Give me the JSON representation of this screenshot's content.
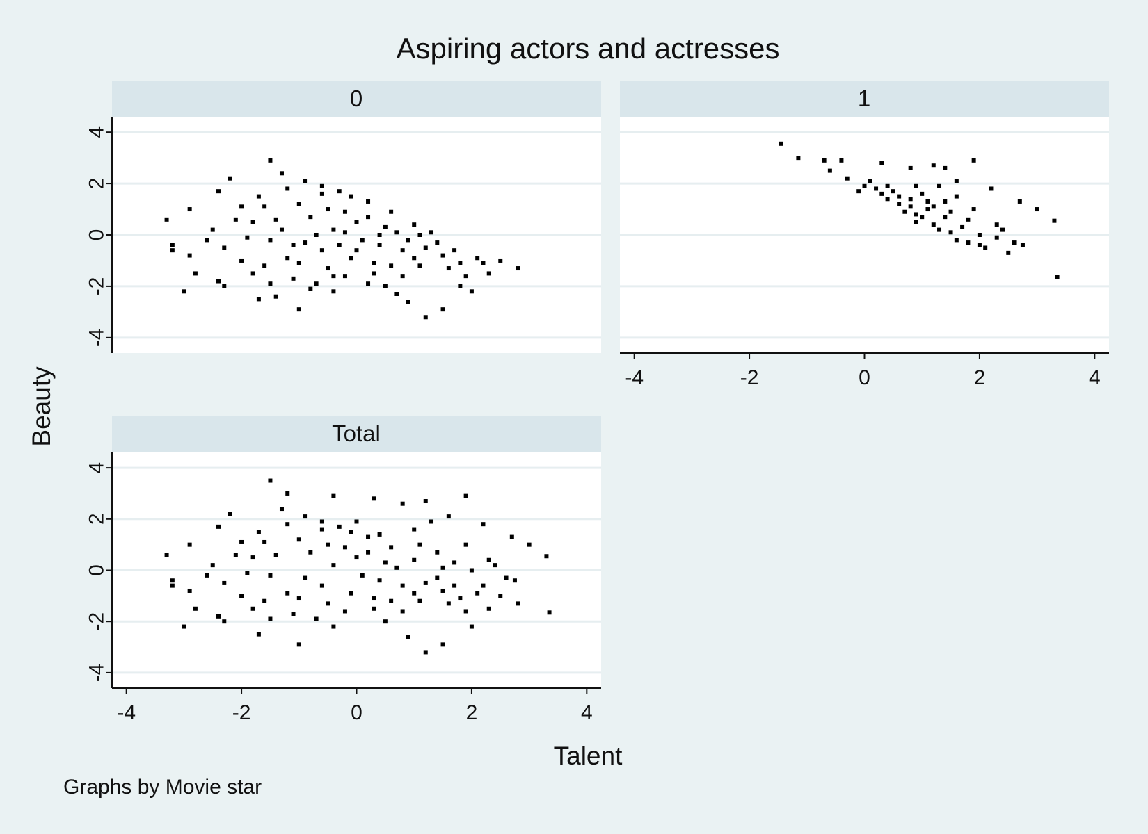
{
  "chart_data": {
    "type": "scatter",
    "title": "Aspiring actors and actresses",
    "xlabel": "Talent",
    "ylabel": "Beauty",
    "note": "Graphs by Movie star",
    "xlim": [
      -4.25,
      4.25
    ],
    "ylim": [
      -4.6,
      4.6
    ],
    "x_ticks": [
      "-4",
      "-2",
      "0",
      "2",
      "4"
    ],
    "y_ticks": [
      "-4",
      "-2",
      "0",
      "2",
      "4"
    ],
    "grid": true,
    "marker_color": "#000000",
    "panels": [
      {
        "label": "0",
        "points": [
          [
            -1.5,
            2.9
          ],
          [
            -2.2,
            2.2
          ],
          [
            -1.3,
            2.4
          ],
          [
            -0.9,
            2.1
          ],
          [
            -0.6,
            1.9
          ],
          [
            -2.4,
            1.7
          ],
          [
            -3.3,
            0.6
          ],
          [
            -2.9,
            1.0
          ],
          [
            -3.2,
            -0.4
          ],
          [
            -3.2,
            -0.6
          ],
          [
            -2.9,
            -0.8
          ],
          [
            -2.8,
            -1.5
          ],
          [
            -3.0,
            -2.2
          ],
          [
            -2.4,
            -1.8
          ],
          [
            -2.3,
            -2.0
          ],
          [
            -1.7,
            -2.5
          ],
          [
            -1.4,
            -2.4
          ],
          [
            -1.0,
            -2.9
          ],
          [
            -0.8,
            -2.1
          ],
          [
            -0.4,
            -2.2
          ],
          [
            0.2,
            -1.9
          ],
          [
            0.5,
            -2.0
          ],
          [
            0.7,
            -2.3
          ],
          [
            0.9,
            -2.6
          ],
          [
            1.2,
            -3.2
          ],
          [
            1.5,
            -2.9
          ],
          [
            1.8,
            -2.0
          ],
          [
            2.0,
            -2.2
          ],
          [
            1.9,
            -1.6
          ],
          [
            2.3,
            -1.5
          ],
          [
            2.5,
            -1.0
          ],
          [
            2.8,
            -1.3
          ],
          [
            2.1,
            -0.9
          ],
          [
            2.2,
            -1.1
          ],
          [
            1.7,
            -0.6
          ],
          [
            1.4,
            -0.3
          ],
          [
            1.3,
            0.1
          ],
          [
            1.0,
            0.4
          ],
          [
            0.6,
            0.9
          ],
          [
            0.2,
            1.3
          ],
          [
            -0.1,
            1.5
          ],
          [
            -0.3,
            1.7
          ],
          [
            -0.6,
            1.6
          ],
          [
            -1.2,
            1.8
          ],
          [
            -1.7,
            1.5
          ],
          [
            -2.0,
            1.1
          ],
          [
            -2.1,
            0.6
          ],
          [
            -2.5,
            0.2
          ],
          [
            -2.6,
            -0.2
          ],
          [
            -2.3,
            -0.5
          ],
          [
            -2.0,
            -1.0
          ],
          [
            -1.8,
            -1.5
          ],
          [
            -1.5,
            -1.9
          ],
          [
            -1.1,
            -1.7
          ],
          [
            -0.7,
            -1.9
          ],
          [
            -0.2,
            -1.6
          ],
          [
            0.3,
            -1.5
          ],
          [
            0.8,
            -1.6
          ],
          [
            1.1,
            -1.2
          ],
          [
            1.6,
            -1.3
          ],
          [
            -1.6,
            1.1
          ],
          [
            -1.4,
            0.6
          ],
          [
            -1.5,
            -0.2
          ],
          [
            -1.2,
            -0.9
          ],
          [
            -1.6,
            -1.2
          ],
          [
            -1.9,
            -0.1
          ],
          [
            -1.8,
            0.5
          ],
          [
            -1.0,
            1.2
          ],
          [
            -0.8,
            0.7
          ],
          [
            -0.9,
            -0.3
          ],
          [
            -1.0,
            -1.1
          ],
          [
            -0.5,
            -1.3
          ],
          [
            -0.6,
            -0.6
          ],
          [
            -0.4,
            0.2
          ],
          [
            -0.5,
            1.0
          ],
          [
            -0.2,
            0.9
          ],
          [
            0.0,
            0.5
          ],
          [
            0.1,
            -0.2
          ],
          [
            -0.1,
            -0.9
          ],
          [
            0.3,
            -1.1
          ],
          [
            0.4,
            -0.4
          ],
          [
            0.5,
            0.3
          ],
          [
            0.7,
            0.1
          ],
          [
            0.8,
            -0.6
          ],
          [
            1.0,
            -0.9
          ],
          [
            1.2,
            -0.5
          ],
          [
            1.5,
            -0.8
          ],
          [
            1.8,
            -1.1
          ],
          [
            0.6,
            -1.2
          ],
          [
            0.2,
            0.7
          ],
          [
            -0.3,
            -0.4
          ],
          [
            -0.7,
            0.0
          ],
          [
            -1.3,
            0.2
          ],
          [
            -1.1,
            -0.4
          ],
          [
            -0.2,
            0.1
          ],
          [
            0.0,
            -0.6
          ],
          [
            0.4,
            0.0
          ],
          [
            -0.4,
            -1.6
          ],
          [
            0.9,
            -0.2
          ],
          [
            1.1,
            0.0
          ]
        ]
      },
      {
        "label": "1",
        "points": [
          [
            -1.45,
            3.55
          ],
          [
            -1.15,
            3.0
          ],
          [
            -0.7,
            2.9
          ],
          [
            -0.4,
            2.9
          ],
          [
            0.3,
            2.8
          ],
          [
            0.8,
            2.6
          ],
          [
            1.2,
            2.7
          ],
          [
            1.4,
            2.6
          ],
          [
            1.9,
            2.9
          ],
          [
            1.6,
            2.1
          ],
          [
            2.2,
            1.8
          ],
          [
            2.7,
            1.3
          ],
          [
            3.0,
            1.0
          ],
          [
            3.3,
            0.55
          ],
          [
            3.35,
            -1.65
          ],
          [
            2.75,
            -0.4
          ],
          [
            2.6,
            -0.3
          ],
          [
            2.3,
            -0.1
          ],
          [
            2.1,
            -0.5
          ],
          [
            2.5,
            -0.7
          ],
          [
            1.8,
            -0.3
          ],
          [
            1.5,
            0.1
          ],
          [
            1.2,
            0.4
          ],
          [
            0.9,
            0.8
          ],
          [
            0.6,
            1.2
          ],
          [
            0.3,
            1.6
          ],
          [
            0.0,
            1.9
          ],
          [
            -0.3,
            2.2
          ],
          [
            -0.6,
            2.5
          ],
          [
            0.1,
            2.1
          ],
          [
            0.5,
            1.7
          ],
          [
            0.8,
            1.4
          ],
          [
            1.1,
            1.0
          ],
          [
            1.4,
            0.7
          ],
          [
            1.7,
            0.3
          ],
          [
            2.0,
            0.0
          ],
          [
            2.3,
            0.4
          ],
          [
            1.9,
            1.0
          ],
          [
            1.6,
            1.5
          ],
          [
            1.3,
            1.9
          ],
          [
            1.0,
            1.6
          ],
          [
            0.7,
            0.9
          ],
          [
            0.4,
            1.4
          ],
          [
            0.2,
            1.8
          ],
          [
            -0.1,
            1.7
          ],
          [
            0.9,
            0.5
          ],
          [
            1.3,
            0.2
          ],
          [
            1.6,
            -0.2
          ],
          [
            2.0,
            -0.4
          ],
          [
            2.4,
            0.2
          ],
          [
            1.1,
            1.3
          ],
          [
            0.6,
            1.5
          ],
          [
            0.8,
            1.1
          ],
          [
            1.0,
            0.7
          ],
          [
            1.2,
            1.1
          ],
          [
            1.5,
            0.9
          ],
          [
            1.8,
            0.6
          ],
          [
            0.4,
            1.9
          ],
          [
            1.4,
            1.3
          ],
          [
            0.9,
            1.9
          ]
        ]
      },
      {
        "label": "Total",
        "points": [
          [
            -1.5,
            3.5
          ],
          [
            -1.2,
            3.0
          ],
          [
            -0.4,
            2.9
          ],
          [
            1.9,
            2.9
          ],
          [
            -2.2,
            2.2
          ],
          [
            -1.3,
            2.4
          ],
          [
            -0.9,
            2.1
          ],
          [
            -2.4,
            1.7
          ],
          [
            -3.3,
            0.6
          ],
          [
            -2.9,
            1.0
          ],
          [
            -3.2,
            -0.4
          ],
          [
            -3.2,
            -0.6
          ],
          [
            -2.9,
            -0.8
          ],
          [
            -2.8,
            -1.5
          ],
          [
            -3.0,
            -2.2
          ],
          [
            -2.4,
            -1.8
          ],
          [
            -2.3,
            -2.0
          ],
          [
            -1.7,
            -2.5
          ],
          [
            -1.0,
            -2.9
          ],
          [
            -0.4,
            -2.2
          ],
          [
            0.5,
            -2.0
          ],
          [
            0.9,
            -2.6
          ],
          [
            1.2,
            -3.2
          ],
          [
            1.5,
            -2.9
          ],
          [
            2.0,
            -2.2
          ],
          [
            2.3,
            -1.5
          ],
          [
            2.8,
            -1.3
          ],
          [
            2.5,
            -1.0
          ],
          [
            2.7,
            1.3
          ],
          [
            3.0,
            1.0
          ],
          [
            3.3,
            0.55
          ],
          [
            3.35,
            -1.65
          ],
          [
            2.75,
            -0.4
          ],
          [
            2.2,
            1.8
          ],
          [
            1.2,
            2.7
          ],
          [
            0.8,
            2.6
          ],
          [
            0.3,
            2.8
          ],
          [
            -0.6,
            1.9
          ],
          [
            -0.1,
            1.5
          ],
          [
            0.6,
            0.9
          ],
          [
            1.0,
            0.4
          ],
          [
            1.4,
            -0.3
          ],
          [
            1.7,
            -0.6
          ],
          [
            2.1,
            -0.9
          ],
          [
            1.9,
            -1.6
          ],
          [
            1.6,
            -1.3
          ],
          [
            1.1,
            -1.2
          ],
          [
            0.8,
            -1.6
          ],
          [
            0.3,
            -1.5
          ],
          [
            -0.2,
            -1.6
          ],
          [
            -0.7,
            -1.9
          ],
          [
            -1.1,
            -1.7
          ],
          [
            -1.5,
            -1.9
          ],
          [
            -1.8,
            -1.5
          ],
          [
            -2.0,
            -1.0
          ],
          [
            -2.3,
            -0.5
          ],
          [
            -2.6,
            -0.2
          ],
          [
            -2.5,
            0.2
          ],
          [
            -2.1,
            0.6
          ],
          [
            -2.0,
            1.1
          ],
          [
            -1.7,
            1.5
          ],
          [
            -1.2,
            1.8
          ],
          [
            -0.6,
            1.6
          ],
          [
            -0.3,
            1.7
          ],
          [
            0.2,
            1.3
          ],
          [
            1.6,
            2.1
          ],
          [
            1.3,
            1.9
          ],
          [
            1.0,
            1.6
          ],
          [
            0.4,
            1.4
          ],
          [
            0.0,
            1.9
          ],
          [
            -1.6,
            1.1
          ],
          [
            -1.4,
            0.6
          ],
          [
            -1.5,
            -0.2
          ],
          [
            -1.2,
            -0.9
          ],
          [
            -1.6,
            -1.2
          ],
          [
            -1.9,
            -0.1
          ],
          [
            -1.8,
            0.5
          ],
          [
            -1.0,
            1.2
          ],
          [
            -0.8,
            0.7
          ],
          [
            -0.9,
            -0.3
          ],
          [
            -1.0,
            -1.1
          ],
          [
            -0.5,
            -1.3
          ],
          [
            -0.6,
            -0.6
          ],
          [
            -0.4,
            0.2
          ],
          [
            -0.5,
            1.0
          ],
          [
            -0.2,
            0.9
          ],
          [
            0.0,
            0.5
          ],
          [
            0.1,
            -0.2
          ],
          [
            -0.1,
            -0.9
          ],
          [
            0.3,
            -1.1
          ],
          [
            0.4,
            -0.4
          ],
          [
            0.5,
            0.3
          ],
          [
            0.7,
            0.1
          ],
          [
            0.8,
            -0.6
          ],
          [
            1.0,
            -0.9
          ],
          [
            1.2,
            -0.5
          ],
          [
            1.5,
            -0.8
          ],
          [
            1.8,
            -1.1
          ],
          [
            0.6,
            -1.2
          ],
          [
            0.2,
            0.7
          ],
          [
            1.1,
            1.0
          ],
          [
            1.4,
            0.7
          ],
          [
            1.7,
            0.3
          ],
          [
            2.0,
            0.0
          ],
          [
            2.3,
            0.4
          ],
          [
            1.9,
            1.0
          ],
          [
            1.5,
            0.1
          ],
          [
            2.4,
            0.2
          ],
          [
            2.6,
            -0.3
          ],
          [
            2.2,
            -0.6
          ]
        ]
      }
    ]
  }
}
